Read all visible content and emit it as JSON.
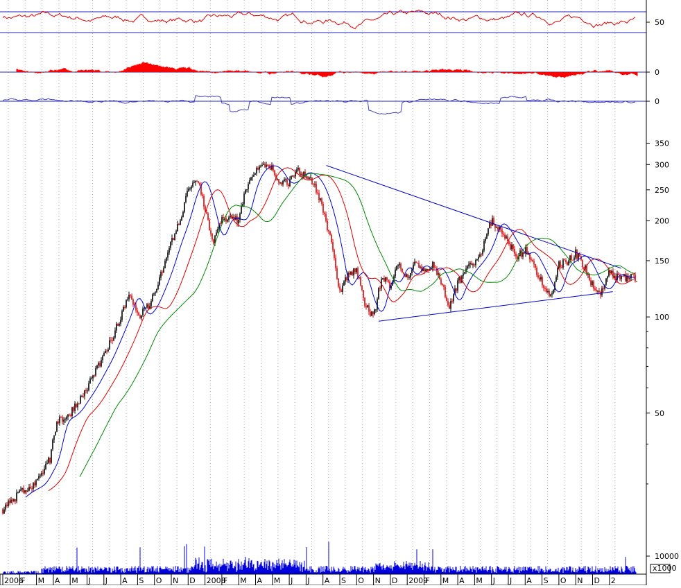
{
  "chart_data": {
    "type": "candlestick-multi-panel",
    "x_axis": {
      "labels": [
        "2006",
        "F",
        "M",
        "A",
        "M",
        "J",
        "J",
        "A",
        "S",
        "O",
        "N",
        "D",
        "2008",
        "F",
        "M",
        "A",
        "M",
        "J",
        "J",
        "A",
        "S",
        "O",
        "N",
        "D",
        "2009",
        "F",
        "M",
        "A",
        "M",
        "J",
        "J",
        "A",
        "S",
        "O",
        "N",
        "D",
        "2"
      ]
    },
    "panels": [
      {
        "name": "oscillator",
        "ticks": [
          "50"
        ],
        "reference_lines": [
          70,
          30
        ],
        "ylim": [
          10,
          90
        ],
        "color": "#e00000"
      },
      {
        "name": "histogram",
        "ticks": [
          "0"
        ],
        "ylim": [
          -1,
          1
        ],
        "color": "#ff0000"
      },
      {
        "name": "momentum",
        "ticks": [
          "0"
        ],
        "ylim": [
          -1,
          1
        ],
        "color": "#4040c0"
      },
      {
        "name": "price",
        "scale": "log",
        "ticks": [
          "350",
          "300",
          "250",
          "200",
          "150",
          "100",
          "50"
        ],
        "ylim": [
          22,
          380
        ],
        "close_anchors": [
          [
            0,
            25
          ],
          [
            1,
            28
          ],
          [
            2,
            30
          ],
          [
            2.8,
            36
          ],
          [
            3.2,
            47
          ],
          [
            4,
            50
          ],
          [
            5,
            60
          ],
          [
            6,
            75
          ],
          [
            7,
            100
          ],
          [
            7.5,
            120
          ],
          [
            8,
            100
          ],
          [
            8.5,
            105
          ],
          [
            9,
            120
          ],
          [
            9.5,
            140
          ],
          [
            10,
            170
          ],
          [
            10.5,
            200
          ],
          [
            11,
            250
          ],
          [
            11.5,
            275
          ],
          [
            12,
            220
          ],
          [
            12.5,
            170
          ],
          [
            13,
            205
          ],
          [
            14,
            200
          ],
          [
            14.5,
            260
          ],
          [
            15,
            290
          ],
          [
            15.5,
            300
          ],
          [
            16,
            290
          ],
          [
            16.5,
            260
          ],
          [
            17,
            265
          ],
          [
            17.5,
            285
          ],
          [
            18,
            280
          ],
          [
            18.5,
            260
          ],
          [
            19,
            220
          ],
          [
            19.5,
            170
          ],
          [
            20,
            120
          ],
          [
            20.5,
            135
          ],
          [
            21,
            140
          ],
          [
            21.5,
            110
          ],
          [
            22,
            100
          ],
          [
            22.5,
            135
          ],
          [
            23,
            125
          ],
          [
            23.5,
            148
          ],
          [
            24,
            132
          ],
          [
            24.5,
            148
          ],
          [
            25,
            138
          ],
          [
            25.5,
            145
          ],
          [
            26,
            128
          ],
          [
            26.5,
            108
          ],
          [
            27,
            128
          ],
          [
            27.5,
            140
          ],
          [
            28,
            150
          ],
          [
            28.5,
            165
          ],
          [
            29,
            200
          ],
          [
            29.5,
            190
          ],
          [
            30,
            170
          ],
          [
            30.5,
            155
          ],
          [
            31,
            162
          ],
          [
            31.5,
            145
          ],
          [
            32,
            128
          ],
          [
            32.5,
            115
          ],
          [
            33,
            145
          ],
          [
            33.5,
            150
          ],
          [
            34,
            158
          ],
          [
            34.5,
            145
          ],
          [
            35,
            126
          ],
          [
            35.5,
            120
          ],
          [
            36,
            138
          ],
          [
            36.5,
            133
          ]
        ],
        "moving_averages": [
          {
            "color": "#0000cc",
            "lag": 0.6
          },
          {
            "color": "#dd0000",
            "lag": 1.4
          },
          {
            "color": "#008800",
            "lag": 2.6
          }
        ],
        "trendlines": [
          {
            "from": [
              19.2,
              298
            ],
            "to": [
              36.7,
              142
            ]
          },
          {
            "from": [
              22.3,
              97
            ],
            "to": [
              36.2,
              120
            ]
          }
        ]
      },
      {
        "name": "volume",
        "ticks": [
          "10000"
        ],
        "unit": "x1000",
        "color": "#0000dd"
      }
    ]
  }
}
